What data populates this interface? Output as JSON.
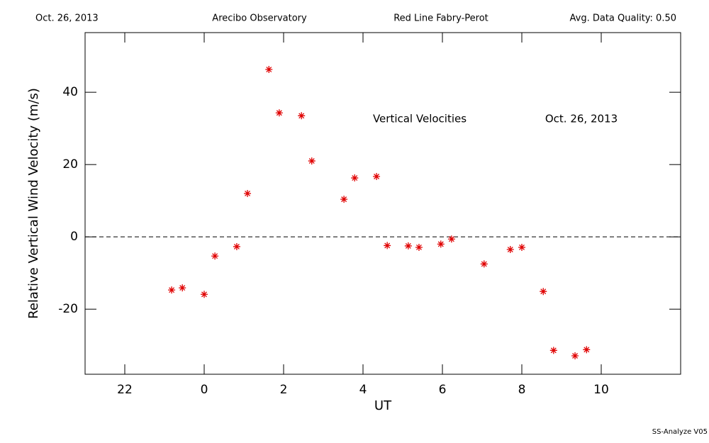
{
  "chart_data": {
    "type": "scatter",
    "header": [
      "Oct. 26, 2013",
      "Arecibo Observatory",
      "Red Line Fabry-Perot",
      "Avg. Data Quality: 0.50"
    ],
    "annotations": [
      "Vertical Velocities",
      "Oct. 26, 2013"
    ],
    "footer": "SS-Analyze V05",
    "x_label": "UT",
    "y_label": "Relative Vertical Wind Velocity (m/s)",
    "x": [
      -0.82,
      -0.55,
      0,
      0.27,
      0.82,
      1.09,
      1.63,
      1.89,
      2.45,
      2.71,
      3.52,
      3.79,
      4.34,
      4.61,
      5.14,
      5.41,
      5.96,
      6.23,
      7.05,
      7.71,
      8.0,
      8.54,
      8.8,
      9.34,
      9.63
    ],
    "values": [
      -14.7,
      -14.1,
      -15.9,
      -5.3,
      -2.7,
      12.0,
      46.3,
      34.3,
      33.5,
      21.0,
      10.4,
      16.3,
      16.7,
      -2.4,
      -2.5,
      -2.9,
      -2.0,
      -0.6,
      -7.5,
      -3.5,
      -2.9,
      -15.1,
      -31.4,
      -32.9,
      -31.2
    ],
    "color": "#e00000",
    "reference_line": 0,
    "xlim": [
      -3,
      12
    ],
    "xticks": [
      {
        "value": -2,
        "label": "22"
      },
      0,
      2,
      4,
      6,
      8,
      10
    ],
    "ylim": [
      -38,
      56.5
    ],
    "yticks": [
      -20,
      0,
      20,
      40
    ]
  }
}
